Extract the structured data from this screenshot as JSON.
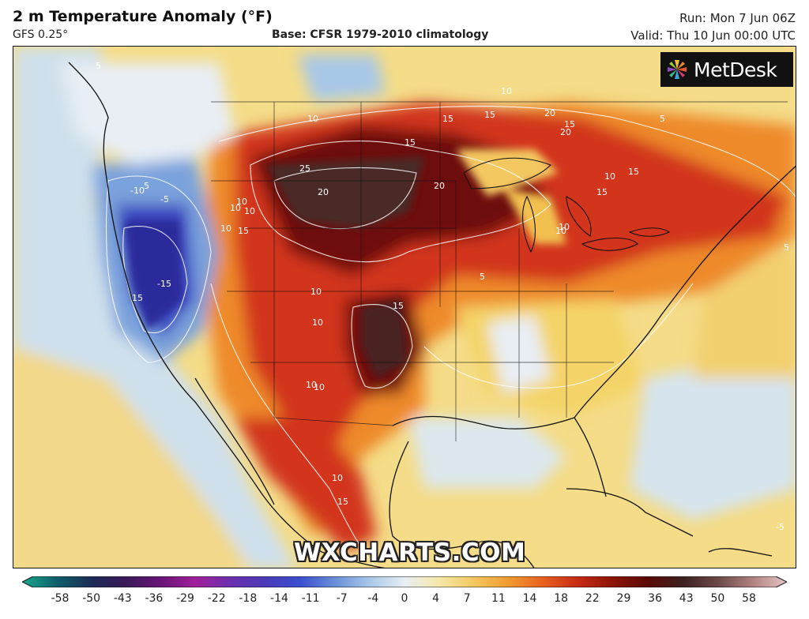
{
  "header": {
    "title": "2 m Temperature Anomaly (°F)",
    "model": "GFS 0.25°",
    "base": "Base: CFSR 1979-2010 climatology",
    "run": "Run: Mon 7 Jun 06Z",
    "valid": "Valid: Thu 10 Jun 00:00 UTC"
  },
  "logo": {
    "text": "MetDesk",
    "icon": "metdesk-pinwheel-icon"
  },
  "watermark": "WXCHARTS.COM",
  "colorbar": {
    "ticks": [
      "-58",
      "-50",
      "-43",
      "-36",
      "-29",
      "-22",
      "-18",
      "-14",
      "-11",
      "-7",
      "-4",
      "0",
      "4",
      "7",
      "11",
      "14",
      "18",
      "22",
      "29",
      "36",
      "43",
      "50",
      "58"
    ],
    "colors": [
      "#1aa88c",
      "#0f5f6b",
      "#1c2b55",
      "#3a1a5a",
      "#6a1478",
      "#a0209a",
      "#6b2fb0",
      "#4a3ab8",
      "#3a4fd0",
      "#6a8fd8",
      "#a8c8e8",
      "#e8eef4",
      "#f6e8a8",
      "#f4c860",
      "#f09a30",
      "#e86020",
      "#c62a14",
      "#8c1408",
      "#5a0a08",
      "#3e2020",
      "#6a4848",
      "#b08080",
      "#e6c6c6"
    ]
  },
  "map_labels": [
    {
      "text": "5"
    },
    {
      "text": "5"
    },
    {
      "text": "10"
    },
    {
      "text": "15"
    },
    {
      "text": "20"
    },
    {
      "text": "25"
    },
    {
      "text": "15"
    },
    {
      "text": "20"
    },
    {
      "text": "10"
    },
    {
      "text": "15"
    },
    {
      "text": "20"
    },
    {
      "text": "15"
    },
    {
      "text": "15"
    },
    {
      "text": "20"
    },
    {
      "text": "10"
    },
    {
      "text": "15"
    },
    {
      "text": "10"
    },
    {
      "text": "10"
    },
    {
      "text": "10"
    },
    {
      "text": "15"
    },
    {
      "text": "10"
    },
    {
      "text": "10"
    },
    {
      "text": "10"
    },
    {
      "text": "10"
    },
    {
      "text": "15"
    },
    {
      "text": "-10"
    },
    {
      "text": "-5"
    },
    {
      "text": "-15"
    },
    {
      "text": "15"
    },
    {
      "text": "10"
    },
    {
      "text": "15"
    },
    {
      "text": "10"
    },
    {
      "text": "5"
    },
    {
      "text": "5"
    },
    {
      "text": "-5"
    },
    {
      "text": "5"
    },
    {
      "text": "10"
    },
    {
      "text": "10"
    }
  ]
}
